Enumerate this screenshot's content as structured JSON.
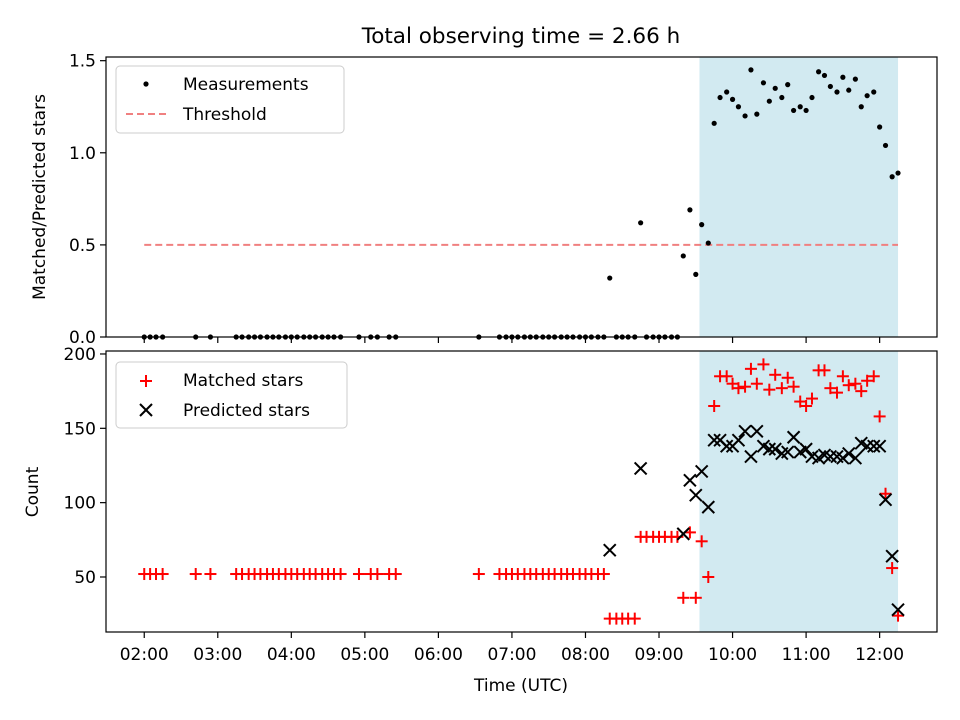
{
  "title": "Total observing time = 2.66 h",
  "chart_data": [
    {
      "type": "scatter",
      "ylabel": "Matched/Predicted stars",
      "xlim": [
        1.48,
        12.78
      ],
      "ylim": [
        0,
        1.52
      ],
      "yticks": [
        0.0,
        0.5,
        1.0,
        1.5
      ],
      "ytick_labels": [
        "0.0",
        "0.5",
        "1.0",
        "1.5"
      ],
      "xticks": [
        2,
        3,
        4,
        5,
        6,
        7,
        8,
        9,
        10,
        11,
        12
      ],
      "grid": false,
      "legend_position": "top-left",
      "shaded_region": {
        "x": [
          9.55,
          12.25
        ],
        "color": "#add8e6"
      },
      "series": [
        {
          "name": "Measurements",
          "marker": "dot",
          "color": "#000000",
          "x": [
            2.0,
            2.08,
            2.16,
            2.25,
            2.7,
            2.9,
            3.25,
            3.33,
            3.42,
            3.5,
            3.58,
            3.67,
            3.75,
            3.83,
            3.92,
            4.0,
            4.08,
            4.17,
            4.25,
            4.33,
            4.42,
            4.5,
            4.58,
            4.67,
            4.92,
            5.08,
            5.17,
            5.33,
            5.42,
            6.55,
            6.83,
            6.92,
            7.0,
            7.08,
            7.17,
            7.25,
            7.33,
            7.42,
            7.5,
            7.58,
            7.67,
            7.75,
            7.83,
            7.92,
            8.0,
            8.08,
            8.17,
            8.25,
            8.33,
            8.42,
            8.5,
            8.58,
            8.67,
            8.75,
            8.83,
            8.92,
            9.0,
            9.08,
            9.17,
            9.25,
            9.33,
            9.42,
            9.5,
            9.58,
            9.67,
            9.75,
            9.83,
            9.92,
            10.0,
            10.08,
            10.17,
            10.25,
            10.33,
            10.42,
            10.5,
            10.58,
            10.67,
            10.75,
            10.83,
            10.92,
            11.0,
            11.08,
            11.17,
            11.25,
            11.33,
            11.42,
            11.5,
            11.58,
            11.67,
            11.75,
            11.83,
            11.92,
            12.0,
            12.08,
            12.17,
            12.25
          ],
          "y": [
            0,
            0,
            0,
            0,
            0,
            0,
            0,
            0,
            0,
            0,
            0,
            0,
            0,
            0,
            0,
            0,
            0,
            0,
            0,
            0,
            0,
            0,
            0,
            0,
            0,
            0,
            0,
            0,
            0,
            0,
            0,
            0,
            0,
            0,
            0,
            0,
            0,
            0,
            0,
            0,
            0,
            0,
            0,
            0,
            0,
            0,
            0,
            0,
            0.32,
            0,
            0,
            0,
            0,
            0.62,
            0,
            0,
            0,
            0,
            0,
            0,
            0.44,
            0.69,
            0.34,
            0.61,
            0.51,
            1.16,
            1.3,
            1.33,
            1.29,
            1.25,
            1.2,
            1.45,
            1.21,
            1.38,
            1.28,
            1.35,
            1.3,
            1.37,
            1.23,
            1.25,
            1.23,
            1.3,
            1.44,
            1.42,
            1.36,
            1.33,
            1.41,
            1.34,
            1.4,
            1.25,
            1.31,
            1.33,
            1.14,
            1.04,
            0.87,
            0.89
          ]
        },
        {
          "name": "Threshold",
          "style": "dashed",
          "color": "#f08080",
          "x": [
            2.0,
            12.25
          ],
          "y": [
            0.5,
            0.5
          ]
        }
      ]
    },
    {
      "type": "scatter",
      "xlabel": "Time (UTC)",
      "ylabel": "Count",
      "xlim": [
        1.48,
        12.78
      ],
      "ylim": [
        13,
        202
      ],
      "yticks": [
        50,
        100,
        150,
        200
      ],
      "ytick_labels": [
        "50",
        "100",
        "150",
        "200"
      ],
      "xticks": [
        2,
        3,
        4,
        5,
        6,
        7,
        8,
        9,
        10,
        11,
        12
      ],
      "xtick_labels": [
        "02:00",
        "03:00",
        "04:00",
        "05:00",
        "06:00",
        "07:00",
        "08:00",
        "09:00",
        "10:00",
        "11:00",
        "12:00"
      ],
      "grid": false,
      "legend_position": "top-left",
      "shaded_region": {
        "x": [
          9.55,
          12.25
        ],
        "color": "#add8e6"
      },
      "series": [
        {
          "name": "Matched stars",
          "marker": "plus",
          "color": "#ff0000",
          "x": [
            2.0,
            2.08,
            2.16,
            2.25,
            2.7,
            2.9,
            3.25,
            3.33,
            3.42,
            3.5,
            3.58,
            3.67,
            3.75,
            3.83,
            3.92,
            4.0,
            4.08,
            4.17,
            4.25,
            4.33,
            4.42,
            4.5,
            4.58,
            4.67,
            4.92,
            5.08,
            5.17,
            5.33,
            5.42,
            6.55,
            6.83,
            6.92,
            7.0,
            7.08,
            7.17,
            7.25,
            7.33,
            7.42,
            7.5,
            7.58,
            7.67,
            7.75,
            7.83,
            7.92,
            8.0,
            8.08,
            8.17,
            8.25,
            8.33,
            8.42,
            8.5,
            8.58,
            8.67,
            8.75,
            8.83,
            8.92,
            9.0,
            9.08,
            9.17,
            9.25,
            9.33,
            9.42,
            9.5,
            9.58,
            9.67,
            9.75,
            9.83,
            9.92,
            10.0,
            10.08,
            10.17,
            10.25,
            10.33,
            10.42,
            10.5,
            10.58,
            10.67,
            10.75,
            10.83,
            10.92,
            11.0,
            11.08,
            11.17,
            11.25,
            11.33,
            11.42,
            11.5,
            11.58,
            11.67,
            11.75,
            11.83,
            11.92,
            12.0,
            12.08,
            12.17,
            12.25
          ],
          "y": [
            52,
            52,
            52,
            52,
            52,
            52,
            52,
            52,
            52,
            52,
            52,
            52,
            52,
            52,
            52,
            52,
            52,
            52,
            52,
            52,
            52,
            52,
            52,
            52,
            52,
            52,
            52,
            52,
            52,
            52,
            52,
            52,
            52,
            52,
            52,
            52,
            52,
            52,
            52,
            52,
            52,
            52,
            52,
            52,
            52,
            52,
            52,
            52,
            22,
            22,
            22,
            22,
            22,
            77,
            77,
            77,
            77,
            77,
            77,
            77,
            36,
            80,
            36,
            74,
            50,
            165,
            185,
            185,
            180,
            177,
            178,
            190,
            180,
            193,
            176,
            186,
            177,
            184,
            178,
            168,
            165,
            170,
            189,
            189,
            177,
            174,
            185,
            179,
            180,
            175,
            182,
            185,
            158,
            106,
            56,
            24
          ]
        },
        {
          "name": "Predicted stars",
          "marker": "x",
          "color": "#000000",
          "x": [
            8.33,
            8.75,
            9.33,
            9.42,
            9.5,
            9.58,
            9.67,
            9.75,
            9.83,
            9.92,
            10.0,
            10.08,
            10.17,
            10.25,
            10.33,
            10.42,
            10.5,
            10.58,
            10.67,
            10.75,
            10.83,
            10.92,
            11.0,
            11.08,
            11.17,
            11.25,
            11.33,
            11.42,
            11.5,
            11.58,
            11.67,
            11.75,
            11.83,
            11.92,
            12.0,
            12.08,
            12.17,
            12.25
          ],
          "y": [
            68,
            123,
            79,
            115,
            105,
            121,
            97,
            142,
            142,
            138,
            138,
            142,
            148,
            131,
            148,
            138,
            136,
            136,
            133,
            134,
            144,
            134,
            136,
            131,
            130,
            132,
            131,
            131,
            130,
            133,
            130,
            140,
            138,
            138,
            138,
            102,
            64,
            28
          ]
        }
      ]
    }
  ]
}
